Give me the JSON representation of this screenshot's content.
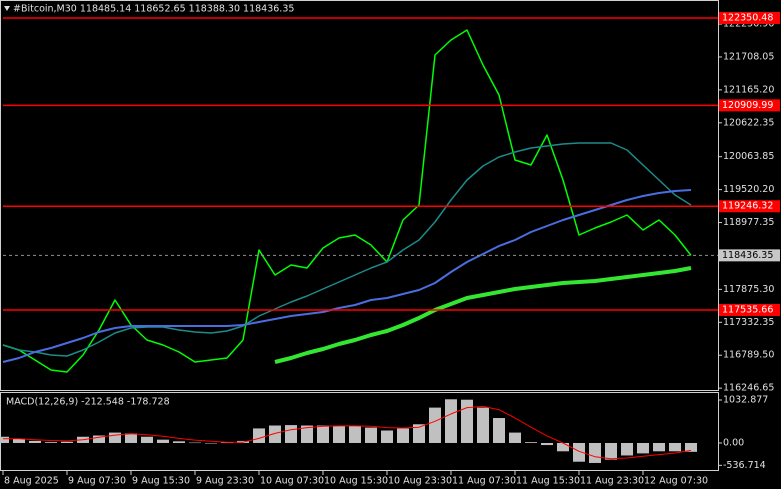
{
  "chart_data": [
    {
      "type": "line",
      "title": "#Bitcoin,M30 118485.14 118652.65 118388.30 118436.35",
      "categories": [
        "8 Aug 2025",
        null,
        null,
        null,
        "9 Aug 07:30",
        null,
        null,
        null,
        "9 Aug 15:30",
        null,
        null,
        null,
        "9 Aug 23:30",
        null,
        null,
        null,
        "10 Aug 07:30",
        null,
        null,
        null,
        "10 Aug 15:30",
        null,
        null,
        null,
        "10 Aug 23:30",
        null,
        null,
        null,
        "11 Aug 07:30",
        null,
        null,
        null,
        "11 Aug 15:30",
        null,
        null,
        null,
        "11 Aug 23:30",
        null,
        null,
        null,
        "12 Aug 07:30",
        null,
        null,
        null
      ],
      "series": [
        {
          "color": "#00ff00",
          "width": 1.5,
          "values": [
            116958,
            116876,
            116711,
            116546,
            116513,
            116793,
            117206,
            117700,
            117288,
            117041,
            116958,
            116843,
            116678,
            116711,
            116744,
            117041,
            118525,
            118113,
            118277,
            118228,
            118558,
            118723,
            118772,
            118607,
            118327,
            119019,
            119267,
            121740,
            121988,
            122153,
            121575,
            121081,
            120009,
            119926,
            120421,
            119679,
            118772,
            118888,
            118986,
            119102,
            118855,
            119019,
            118772,
            118436.35
          ]
        },
        {
          "color": "#1f8a8a",
          "width": 1.5,
          "values": [
            116958,
            116875,
            116843,
            116793,
            116777,
            116875,
            117007,
            117156,
            117238,
            117255,
            117255,
            117205,
            117172,
            117156,
            117189,
            117271,
            117436,
            117552,
            117667,
            117766,
            117881,
            117997,
            118112,
            118228,
            118327,
            118524,
            118689,
            118986,
            119349,
            119679,
            119910,
            120058,
            120141,
            120206,
            120239,
            120272,
            120289,
            120289,
            120289,
            120173,
            119926,
            119679,
            119431,
            119267
          ]
        },
        {
          "color": "#4a6ee0",
          "width": 2,
          "values": [
            116678,
            116744,
            116843,
            116908,
            116991,
            117073,
            117172,
            117238,
            117271,
            117271,
            117271,
            117271,
            117271,
            117271,
            117271,
            117288,
            117337,
            117387,
            117436,
            117469,
            117502,
            117568,
            117618,
            117700,
            117733,
            117799,
            117865,
            117980,
            118162,
            118327,
            118459,
            118590,
            118689,
            118821,
            118920,
            119019,
            119102,
            119184,
            119267,
            119349,
            119415,
            119464,
            119497,
            119514
          ]
        },
        {
          "color": "#32e632",
          "width": 4,
          "values": [
            null,
            null,
            null,
            null,
            null,
            null,
            null,
            null,
            null,
            null,
            null,
            null,
            null,
            null,
            null,
            null,
            null,
            116678,
            116744,
            116826,
            116892,
            116974,
            117040,
            117123,
            117189,
            117288,
            117403,
            117535,
            117634,
            117733,
            117782,
            117832,
            117881,
            117914,
            117947,
            117980,
            117997,
            118014,
            118046,
            118079,
            118112,
            118145,
            118178,
            118228
          ]
        }
      ],
      "levels": [
        122350.48,
        120909.99,
        119246.32,
        117535.66
      ],
      "level_color": "#ff0000",
      "ylim": [
        116216,
        122565
      ],
      "yticks": [
        {
          "value": 122250.9,
          "label": "122250.90"
        },
        121708.05,
        {
          "value": 121165.2,
          "label": "121165.20"
        },
        120622.35,
        120063.85,
        {
          "value": 119520.2,
          "label": "119520.20"
        },
        118977.35,
        {
          "value": 117875.3,
          "label": "117875.30"
        },
        117332.35,
        {
          "value": 116789.5,
          "label": "116789.50"
        },
        116246.65
      ]
    },
    {
      "type": "bar",
      "title": "MACD(12,26,9) -212.548 -178.728",
      "series": [
        {
          "type": "bar",
          "color": "#c0c0c0",
          "values": [
            150,
            100,
            50,
            20,
            30,
            150,
            180,
            250,
            230,
            150,
            80,
            40,
            10,
            0,
            10,
            50,
            350,
            420,
            430,
            420,
            420,
            420,
            410,
            370,
            300,
            350,
            450,
            850,
            1050,
            1040,
            850,
            600,
            250,
            20,
            -50,
            -200,
            -450,
            -480,
            -400,
            -300,
            -250,
            -200,
            -200,
            -212.548
          ]
        },
        {
          "type": "line",
          "color": "#ff0000",
          "values": [
            100,
            100,
            80,
            60,
            50,
            80,
            140,
            190,
            220,
            200,
            160,
            110,
            70,
            40,
            20,
            20,
            110,
            230,
            320,
            370,
            400,
            410,
            410,
            400,
            370,
            360,
            380,
            520,
            700,
            850,
            880,
            800,
            600,
            380,
            170,
            0,
            -200,
            -330,
            -380,
            -360,
            -320,
            -280,
            -240,
            -178.728
          ]
        }
      ],
      "ylim": [
        -697,
        1201
      ],
      "yticks": [
        1032.877,
        {
          "value": 0,
          "label": "0.00"
        },
        -536.714
      ]
    }
  ]
}
